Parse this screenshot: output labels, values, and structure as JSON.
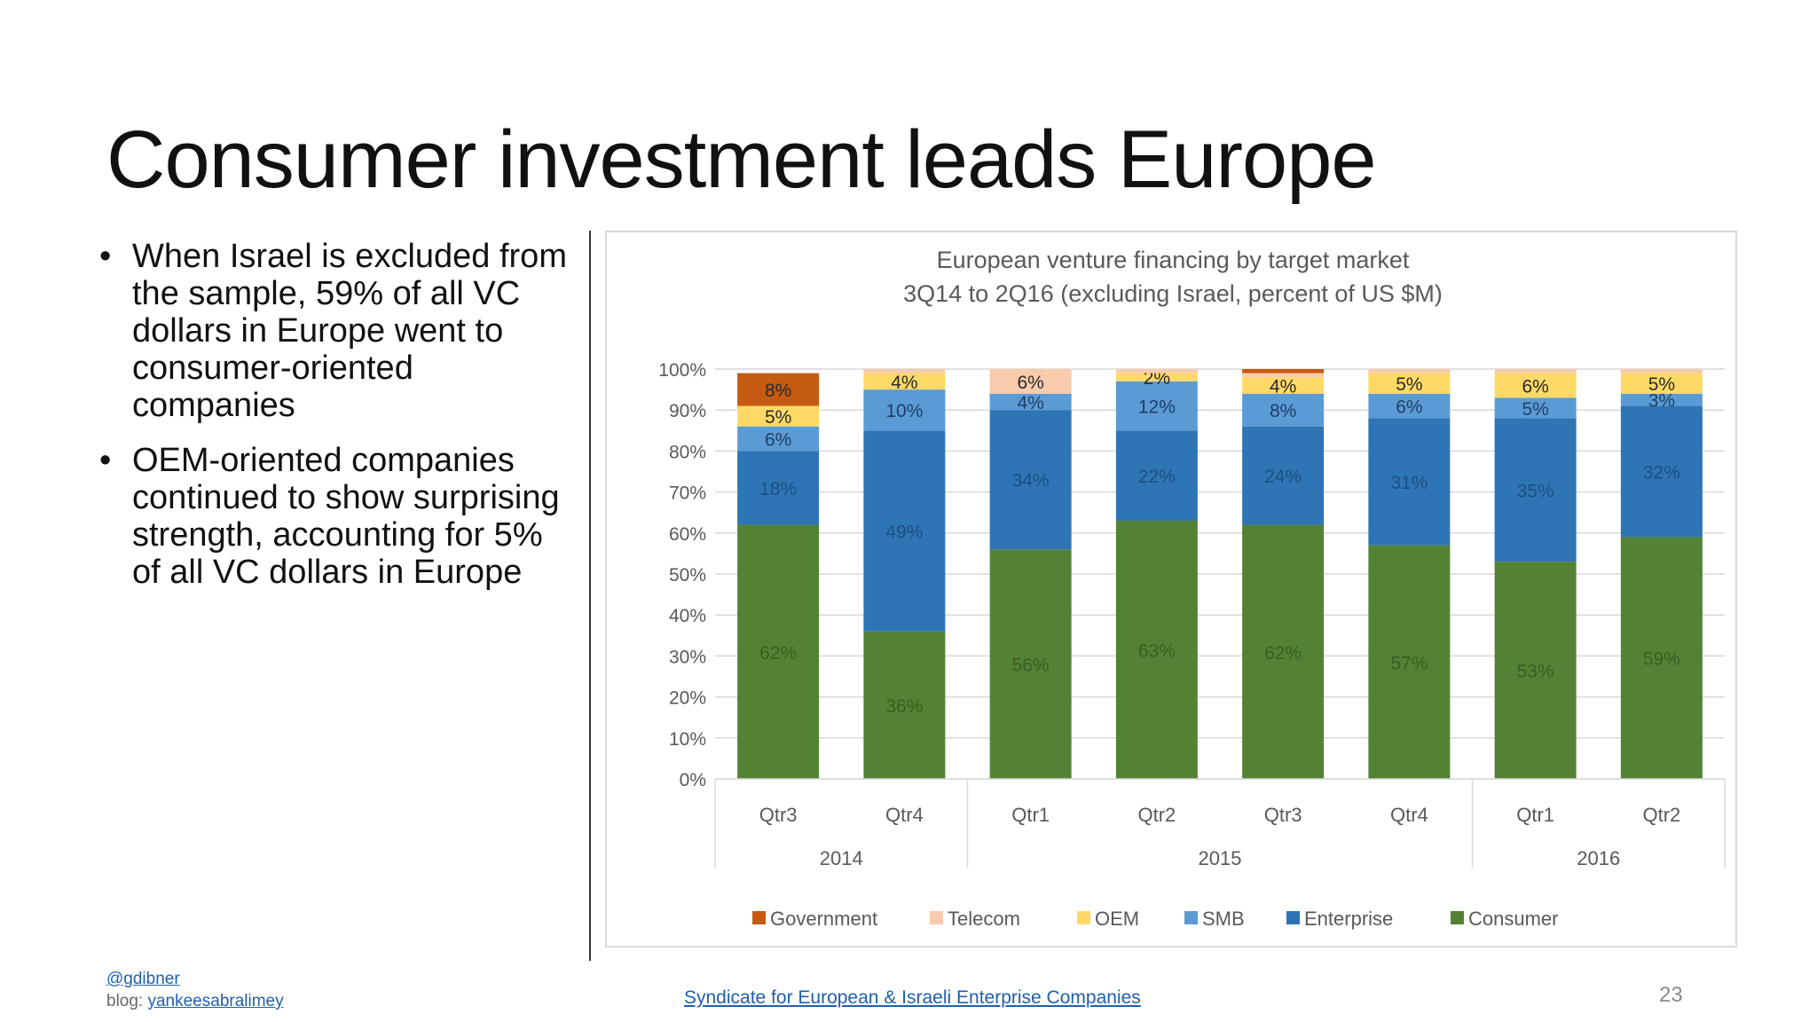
{
  "slide": {
    "title": "Consumer investment leads Europe",
    "bullets": [
      "When Israel is excluded from the sample, 59% of all VC dollars in Europe went to consumer-oriented companies",
      "OEM-oriented companies continued to show surprising strength, accounting for 5% of all VC dollars in Europe"
    ],
    "bullet_glyph": "•"
  },
  "footer": {
    "handle": "@gdibner",
    "blog_prefix": "blog: ",
    "blog_link": "yankeesabralimey",
    "center_link": "Syndicate for European & Israeli Enterprise Companies",
    "page_number": "23"
  },
  "chart_data": {
    "type": "bar",
    "stacked": true,
    "title": "European venture financing by target market",
    "subtitle": "3Q14 to 2Q16 (excluding Israel, percent of US $M)",
    "categories": [
      "Qtr3",
      "Qtr4",
      "Qtr1",
      "Qtr2",
      "Qtr3",
      "Qtr4",
      "Qtr1",
      "Qtr2"
    ],
    "groups": [
      {
        "label": "2014",
        "from": 0,
        "to": 1
      },
      {
        "label": "2015",
        "from": 2,
        "to": 5
      },
      {
        "label": "2016",
        "from": 6,
        "to": 7
      }
    ],
    "ylim": [
      0,
      100
    ],
    "yticks": [
      "0%",
      "10%",
      "20%",
      "30%",
      "40%",
      "50%",
      "60%",
      "70%",
      "80%",
      "90%",
      "100%"
    ],
    "grid": true,
    "legend_position": "bottom",
    "series": [
      {
        "name": "Consumer",
        "color": "#548235",
        "values": [
          62,
          36,
          56,
          63,
          62,
          57,
          53,
          59
        ],
        "labels": [
          "62%",
          "36%",
          "56%",
          "63%",
          "62%",
          "57%",
          "53%",
          "59%"
        ],
        "label_color": "#3a5d22"
      },
      {
        "name": "Enterprise",
        "color": "#2e75b6",
        "values": [
          18,
          49,
          34,
          22,
          24,
          31,
          35,
          32
        ],
        "labels": [
          "18%",
          "49%",
          "34%",
          "22%",
          "24%",
          "31%",
          "35%",
          "32%"
        ],
        "label_color": "#1e4e80"
      },
      {
        "name": "SMB",
        "color": "#5b9bd5",
        "values": [
          6,
          10,
          4,
          12,
          8,
          6,
          5,
          3
        ],
        "labels": [
          "6%",
          "10%",
          "4%",
          "12%",
          "8%",
          "6%",
          "5%",
          "3%"
        ],
        "label_color": "#1f3f66"
      },
      {
        "name": "OEM",
        "color": "#ffd966",
        "values": [
          5,
          4,
          0,
          2,
          4,
          5,
          6,
          5
        ],
        "labels": [
          "5%",
          "4%",
          "",
          "2%",
          "4%",
          "5%",
          "6%",
          "5%"
        ],
        "label_color": "#2a2a2a"
      },
      {
        "name": "Telecom",
        "color": "#f8cbad",
        "values": [
          0,
          1,
          6,
          1,
          1,
          1,
          1,
          1
        ],
        "labels": [
          "",
          "",
          "6%",
          "",
          "",
          "",
          "",
          ""
        ],
        "label_color": "#2a2a2a"
      },
      {
        "name": "Government",
        "color": "#c55a11",
        "values": [
          8,
          0,
          0,
          0,
          1,
          0,
          0,
          0
        ],
        "labels": [
          "8%",
          "",
          "",
          "",
          "",
          "",
          "",
          ""
        ],
        "label_color": "#2a2a2a"
      }
    ],
    "legend_order": [
      "Government",
      "Telecom",
      "OEM",
      "SMB",
      "Enterprise",
      "Consumer"
    ]
  }
}
